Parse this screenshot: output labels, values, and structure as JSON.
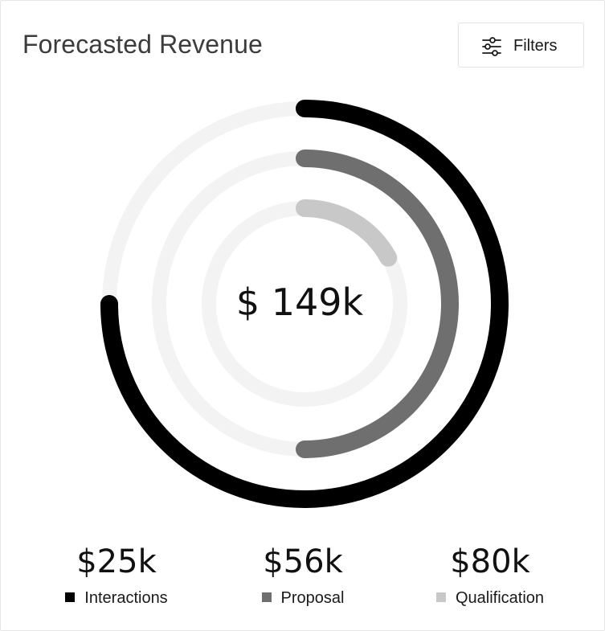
{
  "header": {
    "title": "Forecasted Revenue",
    "filters_label": "Filters",
    "filters_icon": "sliders-icon"
  },
  "chart_data": {
    "type": "radial-bar",
    "center_label": "$ 149k",
    "series": [
      {
        "name": "Interactions",
        "value_label": "$25k",
        "value": 25,
        "fraction": 0.75,
        "color": "#000000"
      },
      {
        "name": "Proposal",
        "value_label": "$56k",
        "value": 56,
        "fraction": 0.5,
        "color": "#6f6f6f"
      },
      {
        "name": "Qualification",
        "value_label": "$80k",
        "value": 80,
        "fraction": 0.17,
        "color": "#c8c8c8"
      }
    ],
    "track_color": "#f4f3f4"
  }
}
